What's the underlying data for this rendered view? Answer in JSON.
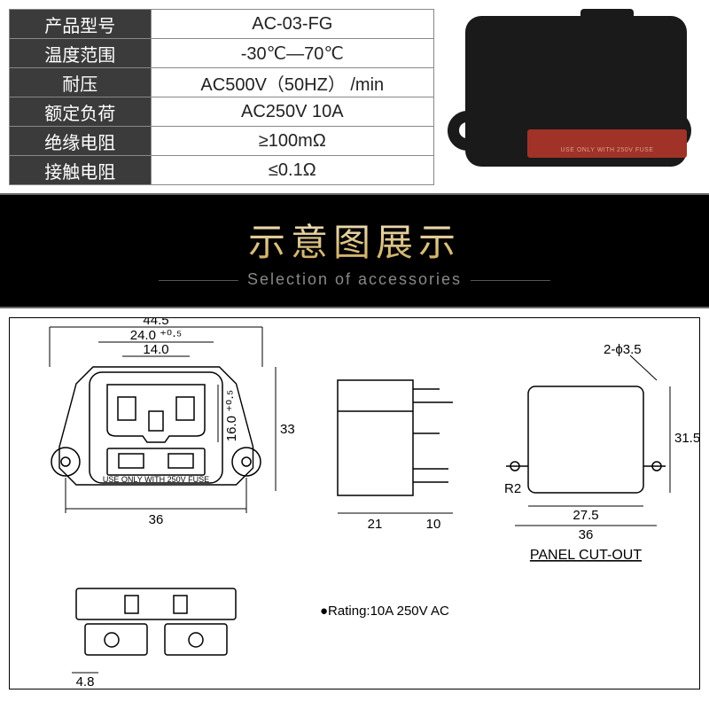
{
  "spec_table": {
    "rows": [
      {
        "label": "产品型号",
        "value": "AC-03-FG"
      },
      {
        "label": "温度范围",
        "value": "-30℃—70℃"
      },
      {
        "label": "耐压",
        "value": "AC500V（50HZ） /min"
      },
      {
        "label": "额定负荷",
        "value": "AC250V  10A"
      },
      {
        "label": "绝缘电阻",
        "value": "≥100mΩ"
      },
      {
        "label": "接触电阻",
        "value": "≤0.1Ω"
      }
    ],
    "label_bg": "#3b3b3b",
    "label_color": "#ffffff",
    "value_bg": "#ffffff"
  },
  "product": {
    "fuse_text": "USE ONLY WITH 250V FUSE",
    "body_color": "#1a1a1a",
    "fuse_color": "#a03228"
  },
  "banner": {
    "title_cn": "示意图展示",
    "title_en": "Selection of accessories",
    "bg": "#000000"
  },
  "drawing": {
    "stroke": "#000000",
    "dims": {
      "w_overall": "44.5",
      "w_tol": "24.0 ⁺⁰·⁵",
      "w_inner": "14.0",
      "h_tol": "16.0 ⁺⁰·⁵",
      "h_overall": "33",
      "mount": "36",
      "side_w": "21",
      "side_d": "10",
      "bottom_pin": "4.8",
      "cut_h": "31.5",
      "cut_w1": "27.5",
      "cut_w2": "36",
      "cut_hole": "2-ϕ3.5",
      "cut_r": "R2"
    },
    "fuse_label": "USE ONLY WITH 250V FUSE",
    "rating": "●Rating:10A  250V AC",
    "panel_label": "PANEL CUT-OUT"
  }
}
